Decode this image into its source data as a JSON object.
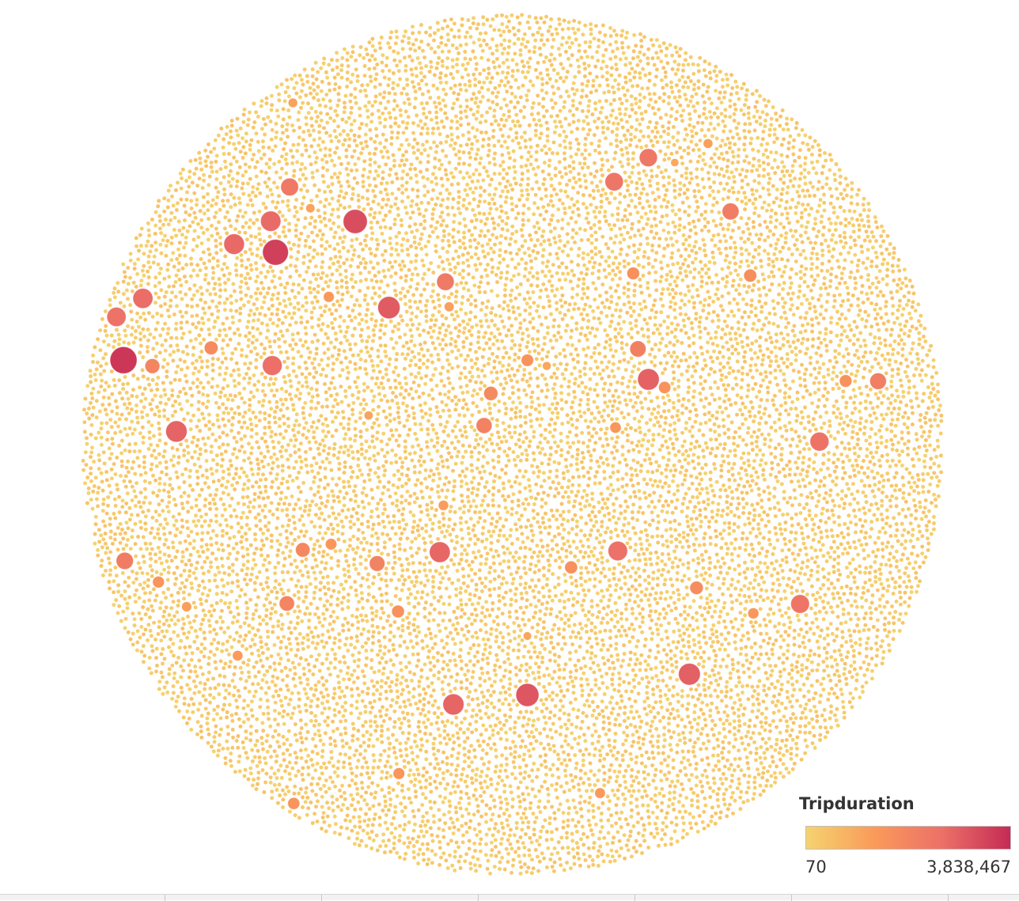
{
  "chart_data": {
    "type": "packed-bubble",
    "measure": "Tripduration",
    "color_scale": {
      "min": 70,
      "max": 3838467,
      "min_label": "70",
      "max_label": "3,838,467",
      "colors": [
        "#f5d36f",
        "#fa9a5a",
        "#ec7068",
        "#c52b55"
      ]
    },
    "legend": {
      "title": "Tripduration",
      "placement": "bottom-right"
    },
    "large_bubbles": [
      {
        "value": 3450000
      },
      {
        "value": 3150000
      },
      {
        "value": 2750000
      },
      {
        "value": 2500000
      },
      {
        "value": 2350000
      },
      {
        "value": 2250000
      },
      {
        "value": 2200000
      },
      {
        "value": 2150000
      },
      {
        "value": 2100000
      },
      {
        "value": 2050000
      },
      {
        "value": 2000000
      },
      {
        "value": 1950000
      },
      {
        "value": 1900000
      },
      {
        "value": 1850000
      },
      {
        "value": 1800000
      },
      {
        "value": 1750000
      },
      {
        "value": 1700000
      },
      {
        "value": 1650000
      },
      {
        "value": 1600000
      },
      {
        "value": 1550000
      },
      {
        "value": 1500000
      },
      {
        "value": 1450000
      },
      {
        "value": 1400000
      },
      {
        "value": 1350000
      },
      {
        "value": 1300000
      },
      {
        "value": 1250000
      },
      {
        "value": 1200000
      },
      {
        "value": 1150000
      },
      {
        "value": 1100000
      },
      {
        "value": 1050000
      },
      {
        "value": 1000000
      },
      {
        "value": 950000
      },
      {
        "value": 900000
      },
      {
        "value": 850000
      },
      {
        "value": 800000
      },
      {
        "value": 780000
      },
      {
        "value": 760000
      },
      {
        "value": 740000
      },
      {
        "value": 720000
      },
      {
        "value": 700000
      },
      {
        "value": 680000
      },
      {
        "value": 660000
      },
      {
        "value": 640000
      },
      {
        "value": 620000
      },
      {
        "value": 600000
      },
      {
        "value": 580000
      },
      {
        "value": 560000
      },
      {
        "value": 540000
      },
      {
        "value": 520000
      },
      {
        "value": 500000
      },
      {
        "value": 480000
      },
      {
        "value": 460000
      },
      {
        "value": 440000
      },
      {
        "value": 420000
      },
      {
        "value": 400000
      },
      {
        "value": 380000
      },
      {
        "value": 360000
      },
      {
        "value": 340000
      },
      {
        "value": 320000
      },
      {
        "value": 300000
      }
    ],
    "small_bubble_value_range": [
      70,
      60000
    ]
  }
}
